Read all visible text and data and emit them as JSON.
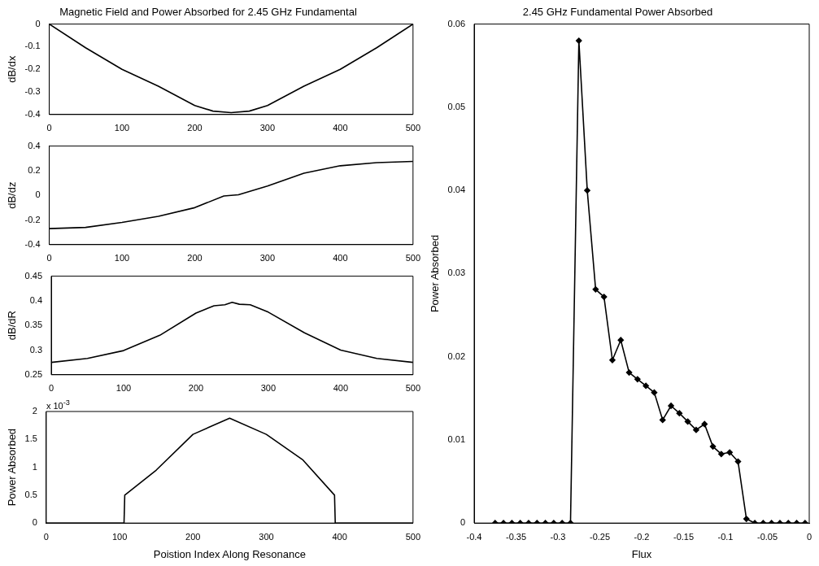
{
  "chart_data": [
    {
      "type": "line",
      "title": "Magnetic Field and Power Absorbed for 2.45 GHz Fundamental",
      "ylabel": "dB/dx",
      "color": "#000000",
      "x": [
        0,
        50,
        100,
        150,
        200,
        225,
        250,
        275,
        300,
        350,
        400,
        450,
        500
      ],
      "values": [
        0,
        -0.105,
        -0.2,
        -0.275,
        -0.36,
        -0.385,
        -0.392,
        -0.385,
        -0.36,
        -0.275,
        -0.2,
        -0.105,
        0
      ],
      "xlim": [
        0,
        500
      ],
      "xticks": [
        0,
        100,
        200,
        300,
        400,
        500
      ],
      "ylim": [
        -0.4,
        0
      ],
      "yticks": [
        -0.4,
        -0.3,
        -0.2,
        -0.1,
        0
      ]
    },
    {
      "type": "line",
      "ylabel": "dB/dz",
      "color": "#000000",
      "x": [
        0,
        50,
        100,
        150,
        200,
        240,
        260,
        300,
        350,
        400,
        450,
        500
      ],
      "values": [
        -0.27,
        -0.26,
        -0.22,
        -0.17,
        -0.1,
        -0.005,
        0.005,
        0.075,
        0.18,
        0.24,
        0.265,
        0.275
      ],
      "xlim": [
        0,
        500
      ],
      "xticks": [
        0,
        100,
        200,
        300,
        400,
        500
      ],
      "ylim": [
        -0.4,
        0.4
      ],
      "yticks": [
        -0.4,
        -0.2,
        0,
        0.2,
        0.4
      ]
    },
    {
      "type": "line",
      "ylabel": "dB/dR",
      "color": "#000000",
      "x": [
        0,
        50,
        100,
        150,
        200,
        225,
        240,
        250,
        260,
        275,
        300,
        350,
        400,
        450,
        500
      ],
      "values": [
        0.275,
        0.283,
        0.299,
        0.33,
        0.375,
        0.39,
        0.392,
        0.397,
        0.393,
        0.392,
        0.377,
        0.335,
        0.3,
        0.283,
        0.275
      ],
      "xlim": [
        0,
        500
      ],
      "xticks": [
        0,
        100,
        200,
        300,
        400,
        500
      ],
      "ylim": [
        0.25,
        0.45
      ],
      "yticks": [
        0.25,
        0.3,
        0.35,
        0.4,
        0.45
      ]
    },
    {
      "type": "line",
      "xlabel": "Poistion Index Along Resonance",
      "ylabel": "Power Absorbed",
      "color": "#000000",
      "x": [
        0,
        106,
        107,
        150,
        200,
        250,
        300,
        350,
        393,
        394,
        500
      ],
      "values": [
        0,
        0,
        0.5,
        0.95,
        1.59,
        1.88,
        1.59,
        1.13,
        0.5,
        0,
        0
      ],
      "xlim": [
        0,
        500
      ],
      "xticks": [
        0,
        100,
        200,
        300,
        400,
        500
      ],
      "ylim": [
        0,
        2
      ],
      "yticks": [
        0,
        0.5,
        1,
        1.5,
        2
      ],
      "annotations": [
        "x 10$^{-3}$"
      ]
    },
    {
      "type": "line",
      "title": "2.45 GHz Fundamental Power Absorbed",
      "xlabel": "Flux",
      "ylabel": "Power Absorbed",
      "color": "#000000",
      "marker": "diamond",
      "x": [
        -0.375,
        -0.365,
        -0.355,
        -0.345,
        -0.335,
        -0.325,
        -0.315,
        -0.305,
        -0.295,
        -0.285,
        -0.275,
        -0.265,
        -0.255,
        -0.245,
        -0.235,
        -0.225,
        -0.215,
        -0.205,
        -0.195,
        -0.185,
        -0.175,
        -0.165,
        -0.155,
        -0.145,
        -0.135,
        -0.125,
        -0.115,
        -0.105,
        -0.095,
        -0.085,
        -0.075,
        -0.065,
        -0.055,
        -0.045,
        -0.035,
        -0.025,
        -0.015,
        -0.005
      ],
      "values": [
        0,
        0,
        0,
        0,
        0,
        0,
        0,
        0,
        0,
        0,
        0.058,
        0.04,
        0.0281,
        0.0272,
        0.0196,
        0.022,
        0.0181,
        0.0173,
        0.0165,
        0.0157,
        0.0124,
        0.0141,
        0.0132,
        0.0122,
        0.0112,
        0.0119,
        0.0092,
        0.0083,
        0.0085,
        0.0074,
        0.0005,
        0,
        0,
        0,
        0,
        0,
        0,
        0
      ],
      "xlim": [
        -0.4,
        0
      ],
      "xticks": [
        -0.4,
        -0.35,
        -0.3,
        -0.25,
        -0.2,
        -0.15,
        -0.1,
        -0.05,
        0
      ],
      "ylim": [
        0,
        0.06
      ],
      "yticks": [
        0,
        0.01,
        0.02,
        0.03,
        0.04,
        0.05,
        0.06
      ]
    }
  ]
}
